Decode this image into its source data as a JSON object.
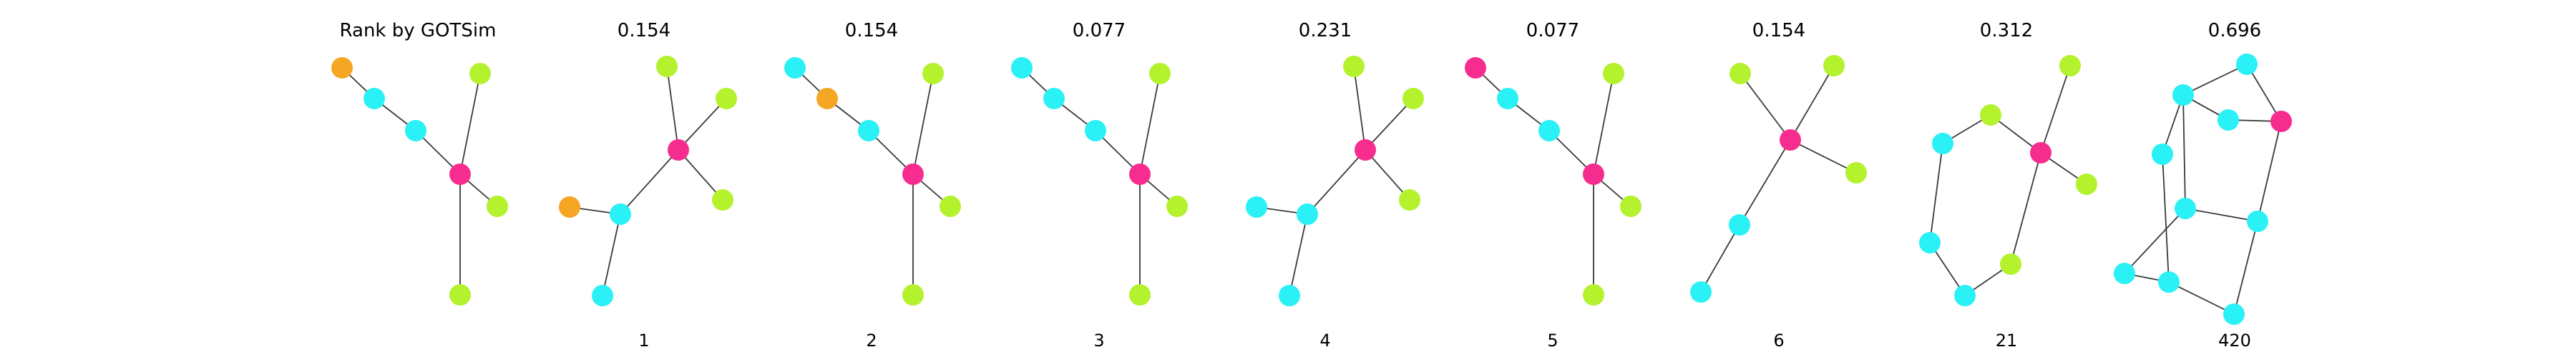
{
  "figure": {
    "row_title": "Rank by GOTSim",
    "colors": {
      "orange": "#f5a623",
      "cyan": "#29f1f6",
      "pink": "#f72c8f",
      "lime": "#b3f22d",
      "edge": "#3a3a3a"
    },
    "panels": [
      {
        "id": "query",
        "title": "",
        "caption": "",
        "nodes": [
          [
            "orange",
            -165,
            -149
          ],
          [
            "cyan",
            -120,
            -106
          ],
          [
            "cyan",
            -62,
            -61
          ],
          [
            "pink",
            0,
            0
          ],
          [
            "lime",
            28,
            -141
          ],
          [
            "lime",
            52,
            45
          ],
          [
            "lime",
            0,
            169
          ]
        ],
        "edges": [
          [
            0,
            1
          ],
          [
            1,
            2
          ],
          [
            2,
            3
          ],
          [
            3,
            4
          ],
          [
            3,
            5
          ],
          [
            3,
            6
          ]
        ]
      },
      {
        "id": "rank-1",
        "title": "0.154",
        "caption": "1",
        "nodes": [
          [
            "pink",
            0,
            0
          ],
          [
            "lime",
            -16,
            -117
          ],
          [
            "lime",
            67,
            -72
          ],
          [
            "lime",
            62,
            70
          ],
          [
            "cyan",
            -81,
            90
          ],
          [
            "orange",
            -152,
            80
          ],
          [
            "cyan",
            -106,
            204
          ]
        ],
        "edges": [
          [
            0,
            1
          ],
          [
            0,
            2
          ],
          [
            0,
            3
          ],
          [
            0,
            4
          ],
          [
            4,
            5
          ],
          [
            4,
            6
          ]
        ]
      },
      {
        "id": "rank-2",
        "title": "0.154",
        "caption": "2",
        "nodes": [
          [
            "cyan",
            -165,
            -149
          ],
          [
            "orange",
            -120,
            -106
          ],
          [
            "cyan",
            -62,
            -61
          ],
          [
            "pink",
            0,
            0
          ],
          [
            "lime",
            28,
            -141
          ],
          [
            "lime",
            52,
            45
          ],
          [
            "lime",
            0,
            169
          ]
        ],
        "edges": [
          [
            0,
            1
          ],
          [
            1,
            2
          ],
          [
            2,
            3
          ],
          [
            3,
            4
          ],
          [
            3,
            5
          ],
          [
            3,
            6
          ]
        ]
      },
      {
        "id": "rank-3",
        "title": "0.077",
        "caption": "3",
        "nodes": [
          [
            "cyan",
            -165,
            -149
          ],
          [
            "cyan",
            -120,
            -106
          ],
          [
            "cyan",
            -62,
            -61
          ],
          [
            "pink",
            0,
            0
          ],
          [
            "lime",
            28,
            -141
          ],
          [
            "lime",
            52,
            45
          ],
          [
            "lime",
            0,
            169
          ]
        ],
        "edges": [
          [
            0,
            1
          ],
          [
            1,
            2
          ],
          [
            2,
            3
          ],
          [
            3,
            4
          ],
          [
            3,
            5
          ],
          [
            3,
            6
          ]
        ]
      },
      {
        "id": "rank-4",
        "title": "0.231",
        "caption": "4",
        "nodes": [
          [
            "pink",
            0,
            0
          ],
          [
            "lime",
            -16,
            -117
          ],
          [
            "lime",
            67,
            -72
          ],
          [
            "lime",
            62,
            70
          ],
          [
            "cyan",
            -81,
            90
          ],
          [
            "cyan",
            -152,
            80
          ],
          [
            "cyan",
            -106,
            204
          ]
        ],
        "edges": [
          [
            0,
            1
          ],
          [
            0,
            2
          ],
          [
            0,
            3
          ],
          [
            0,
            4
          ],
          [
            4,
            5
          ],
          [
            4,
            6
          ]
        ]
      },
      {
        "id": "rank-5",
        "title": "0.077",
        "caption": "5",
        "nodes": [
          [
            "pink",
            -165,
            -149
          ],
          [
            "cyan",
            -120,
            -106
          ],
          [
            "cyan",
            -62,
            -61
          ],
          [
            "pink",
            0,
            0
          ],
          [
            "lime",
            28,
            -141
          ],
          [
            "lime",
            52,
            45
          ],
          [
            "lime",
            0,
            169
          ]
        ],
        "edges": [
          [
            0,
            1
          ],
          [
            1,
            2
          ],
          [
            2,
            3
          ],
          [
            3,
            4
          ],
          [
            3,
            5
          ],
          [
            3,
            6
          ]
        ]
      },
      {
        "id": "rank-6",
        "title": "0.154",
        "caption": "6",
        "nodes": [
          [
            "pink",
            0,
            0
          ],
          [
            "lime",
            -70,
            -93
          ],
          [
            "lime",
            61,
            -104
          ],
          [
            "lime",
            92,
            46
          ],
          [
            "cyan",
            -71,
            119
          ],
          [
            "cyan",
            -125,
            213
          ]
        ],
        "edges": [
          [
            0,
            1
          ],
          [
            0,
            2
          ],
          [
            0,
            3
          ],
          [
            0,
            4
          ],
          [
            4,
            5
          ]
        ]
      },
      {
        "id": "rank-21",
        "title": "0.312",
        "caption": "21",
        "nodes": [
          [
            "pink",
            0,
            0
          ],
          [
            "lime",
            41,
            -122
          ],
          [
            "lime",
            64,
            44
          ],
          [
            "lime",
            -70,
            -53
          ],
          [
            "cyan",
            -137,
            -13
          ],
          [
            "cyan",
            -155,
            126
          ],
          [
            "cyan",
            -106,
            200
          ],
          [
            "lime",
            -42,
            156
          ]
        ],
        "edges": [
          [
            0,
            1
          ],
          [
            0,
            2
          ],
          [
            0,
            3
          ],
          [
            3,
            4
          ],
          [
            4,
            5
          ],
          [
            5,
            6
          ],
          [
            6,
            7
          ],
          [
            7,
            0
          ]
        ]
      },
      {
        "id": "rank-420",
        "title": "0.696",
        "caption": "420",
        "nodes": [
          [
            "cyan",
            0,
            -174
          ],
          [
            "cyan",
            -89,
            -131
          ],
          [
            "cyan",
            -26,
            -96
          ],
          [
            "pink",
            48,
            -94
          ],
          [
            "cyan",
            -118,
            -48
          ],
          [
            "cyan",
            -86,
            28
          ],
          [
            "cyan",
            15,
            46
          ],
          [
            "cyan",
            -171,
            119
          ],
          [
            "cyan",
            -109,
            131
          ],
          [
            "cyan",
            -18,
            176
          ]
        ],
        "edges": [
          [
            0,
            1
          ],
          [
            0,
            3
          ],
          [
            1,
            2
          ],
          [
            2,
            3
          ],
          [
            1,
            4
          ],
          [
            1,
            5
          ],
          [
            4,
            8
          ],
          [
            5,
            7
          ],
          [
            5,
            6
          ],
          [
            7,
            8
          ],
          [
            8,
            9
          ],
          [
            9,
            6
          ],
          [
            6,
            3
          ],
          [
            1,
            2
          ]
        ]
      }
    ]
  }
}
